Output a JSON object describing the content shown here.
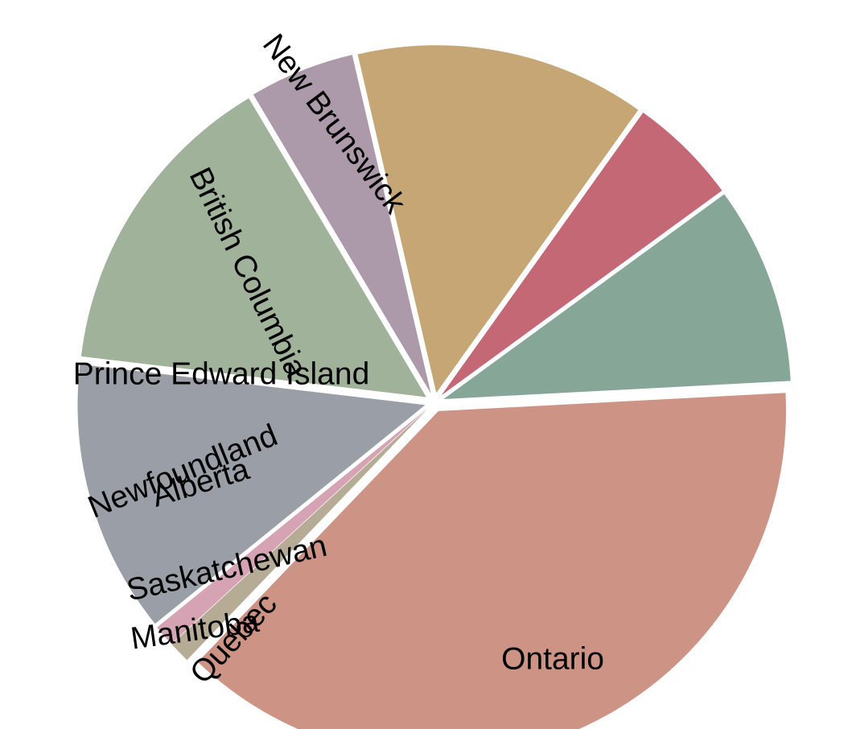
{
  "chart_data": {
    "type": "pie",
    "title": "",
    "categories": [
      "Ontario",
      "Manitoba",
      "Saskatchewan",
      "Alberta",
      "British Columbia",
      "New Brunswick",
      "Prince Edward Island",
      "Newfoundland",
      "Quebec"
    ],
    "values": [
      38.0,
      1.0,
      1.0,
      12.7,
      14.6,
      4.9,
      13.5,
      5.1,
      9.2
    ],
    "unit": "%",
    "colors": [
      "#cd9384",
      "#b6ab95",
      "#d5a3b3",
      "#9a9ea6",
      "#a0b29a",
      "#ac9aab",
      "#c6a674",
      "#c56875",
      "#86a698"
    ],
    "legend": "none",
    "labels_on_slices": true,
    "exploded": true
  }
}
